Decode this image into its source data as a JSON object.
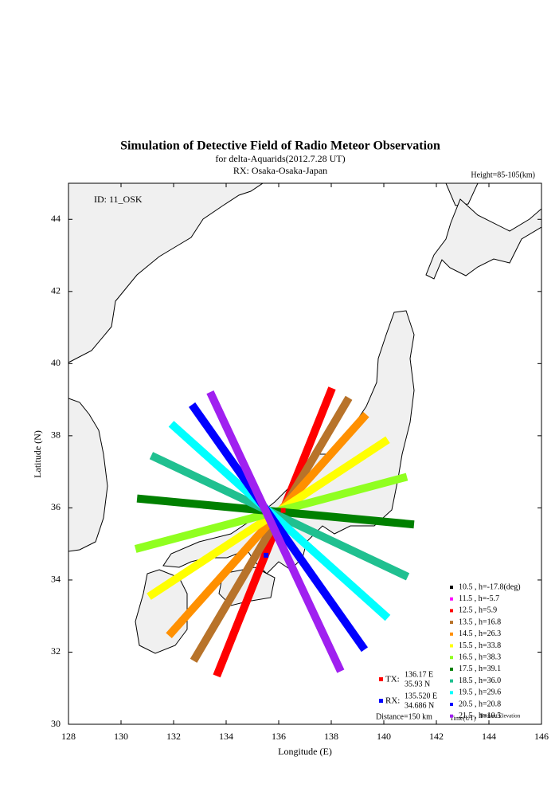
{
  "chart_data": {
    "type": "map",
    "title": "Simulation of Detective Field of Radio Meteor Observation",
    "subtitle": "for delta-Aquarids(2012.7.28 UT)",
    "receiver": "RX: Osaka-Osaka-Japan",
    "height_note": "Height=85-105(km)",
    "id_label": "ID: 11_OSK",
    "x_label": "Longitude (E)",
    "y_label": "Latitude (N)",
    "xlim": [
      128,
      146
    ],
    "ylim": [
      30,
      45
    ],
    "xticks": [
      128,
      130,
      132,
      134,
      136,
      138,
      140,
      142,
      144,
      146
    ],
    "yticks": [
      30,
      32,
      34,
      36,
      38,
      40,
      42,
      44
    ],
    "series": [
      {
        "name": "10.5 ,  h=-17.8(deg)",
        "color": "#000000"
      },
      {
        "name": "11.5 ,  h=-5.7",
        "color": "#ff00ff"
      },
      {
        "name": "12.5 ,  h=5.9",
        "color": "#ff0000",
        "x": [
          133.64,
          138.03
        ],
        "values": [
          31.34,
          39.32
        ]
      },
      {
        "name": "13.5 ,  h=16.8",
        "color": "#b8732a",
        "x": [
          132.76,
          138.67
        ],
        "values": [
          31.76,
          39.05
        ]
      },
      {
        "name": "14.5 ,  h=26.3",
        "color": "#ff9000",
        "x": [
          131.82,
          139.33
        ],
        "values": [
          32.46,
          38.59
        ]
      },
      {
        "name": "15.5 ,  h=33.8",
        "color": "#ffff00",
        "x": [
          131.06,
          140.15
        ],
        "values": [
          33.54,
          37.89
        ]
      },
      {
        "name": "16.5 ,  h=38.3",
        "color": "#90ff20",
        "x": [
          130.55,
          140.88
        ],
        "values": [
          34.86,
          36.86
        ]
      },
      {
        "name": "17.5 ,  h=39.1",
        "color": "#008000",
        "x": [
          130.61,
          141.15
        ],
        "values": [
          36.26,
          35.54
        ]
      },
      {
        "name": "18.5 ,  h=36.0",
        "color": "#20c090",
        "x": [
          131.15,
          140.91
        ],
        "values": [
          37.45,
          34.09
        ]
      },
      {
        "name": "19.5 ,  h=29.6",
        "color": "#00ffff",
        "x": [
          131.91,
          140.15
        ],
        "values": [
          38.33,
          32.95
        ]
      },
      {
        "name": "20.5 ,  h=20.8",
        "color": "#0000ff",
        "x": [
          132.7,
          139.27
        ],
        "values": [
          38.86,
          32.07
        ]
      },
      {
        "name": "21.5 ,  h=10.5",
        "color": "#a020f0",
        "x": [
          133.39,
          138.36
        ],
        "values": [
          39.21,
          31.47
        ]
      }
    ],
    "legend_time": "Time(UT)",
    "legend_elevation": "Radiant Elevation",
    "stations": [
      {
        "label": "TX:",
        "color": "#ff0000",
        "x": 136.17,
        "y": 35.93,
        "x_label": "136.17 E",
        "y_label": "35.93 N"
      },
      {
        "label": "RX:",
        "color": "#0000ff",
        "x": 135.52,
        "y": 34.686,
        "x_label": "135.520 E",
        "y_label": "34.686 N"
      }
    ],
    "distance": "Distance=150 km"
  }
}
